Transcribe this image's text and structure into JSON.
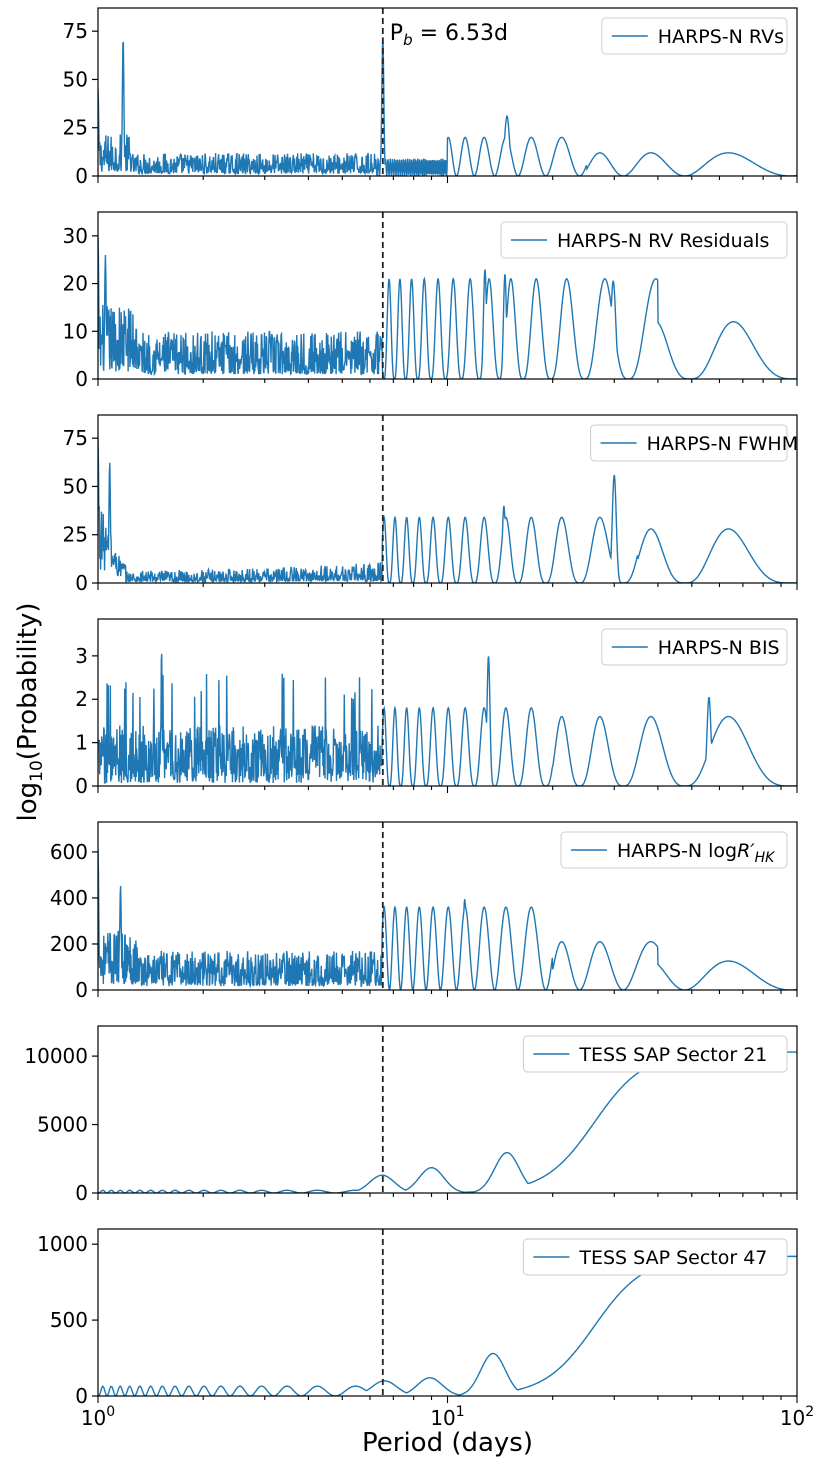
{
  "chart_data": {
    "type": "line",
    "xlabel": "Period (days)",
    "ylabel": "log10(Probability)",
    "xscale": "log",
    "xlim": [
      1,
      100
    ],
    "x_ticks": [
      {
        "value": 1,
        "base": "10",
        "exp": "0"
      },
      {
        "value": 10,
        "base": "10",
        "exp": "1"
      },
      {
        "value": 100,
        "base": "10",
        "exp": "2"
      }
    ],
    "vline": {
      "x": 6.53,
      "style": "dashed",
      "label_main": "P",
      "label_sub": "b",
      "label_rest": " = 6.53d"
    },
    "color": "#1f77b4",
    "panels": [
      {
        "id": "rv",
        "legend": "HARPS-N RVs",
        "ylim": [
          0,
          87
        ],
        "yticks": [
          0,
          25,
          50,
          75
        ],
        "profile": "rv"
      },
      {
        "id": "res",
        "legend": "HARPS-N RV Residuals",
        "ylim": [
          0,
          35
        ],
        "yticks": [
          0,
          10,
          20,
          30
        ],
        "profile": "res"
      },
      {
        "id": "fwhm",
        "legend": "HARPS-N FWHM",
        "ylim": [
          0,
          87
        ],
        "yticks": [
          0,
          25,
          50,
          75
        ],
        "profile": "fwhm"
      },
      {
        "id": "bis",
        "legend": "HARPS-N BIS",
        "ylim": [
          0,
          3.85
        ],
        "yticks": [
          0,
          1,
          2,
          3
        ],
        "profile": "bis"
      },
      {
        "id": "rhk",
        "legend_main": "HARPS-N log",
        "legend_it": "R′",
        "legend_sub": "HK",
        "ylim": [
          0,
          730
        ],
        "yticks": [
          0,
          200,
          400,
          600
        ],
        "profile": "rhk"
      },
      {
        "id": "s21",
        "legend": "TESS SAP Sector 21",
        "ylim": [
          0,
          12200
        ],
        "yticks": [
          0,
          5000,
          10000
        ],
        "profile": "tess21"
      },
      {
        "id": "s47",
        "legend": "TESS SAP Sector 47",
        "ylim": [
          0,
          1100
        ],
        "yticks": [
          0,
          500,
          1000
        ],
        "profile": "tess47"
      }
    ]
  }
}
